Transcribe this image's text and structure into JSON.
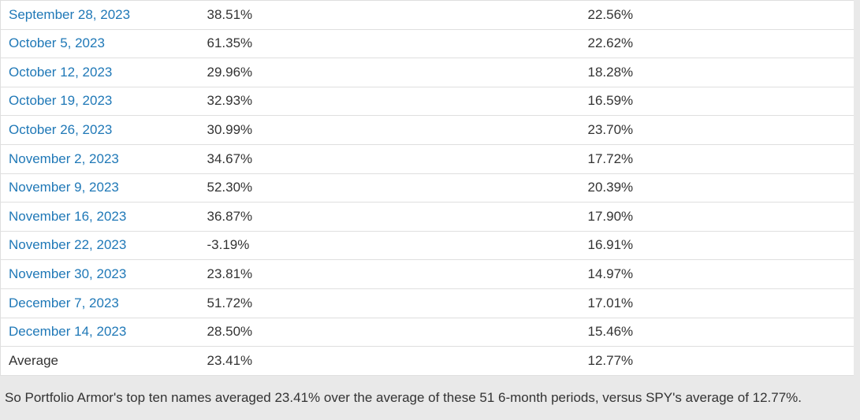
{
  "colors": {
    "link": "#1f78b7",
    "text": "#333333",
    "divider": "#dfdfdf",
    "page_background": "#e9e9e9",
    "table_background": "#ffffff"
  },
  "table": {
    "rows": [
      {
        "date": "September 28, 2023",
        "top_ten": "38.51%",
        "spy": "22.56%"
      },
      {
        "date": "October 5, 2023",
        "top_ten": "61.35%",
        "spy": "22.62%"
      },
      {
        "date": "October 12, 2023",
        "top_ten": "29.96%",
        "spy": "18.28%"
      },
      {
        "date": "October 19, 2023",
        "top_ten": "32.93%",
        "spy": "16.59%"
      },
      {
        "date": "October 26, 2023",
        "top_ten": "30.99%",
        "spy": "23.70%"
      },
      {
        "date": "November 2, 2023",
        "top_ten": "34.67%",
        "spy": "17.72%"
      },
      {
        "date": "November 9, 2023",
        "top_ten": "52.30%",
        "spy": "20.39%"
      },
      {
        "date": "November 16, 2023",
        "top_ten": "36.87%",
        "spy": "17.90%"
      },
      {
        "date": "November 22, 2023",
        "top_ten": "-3.19%",
        "spy": "16.91%"
      },
      {
        "date": "November 30, 2023",
        "top_ten": "23.81%",
        "spy": "14.97%"
      },
      {
        "date": "December 7, 2023",
        "top_ten": "51.72%",
        "spy": "17.01%"
      },
      {
        "date": "December 14, 2023",
        "top_ten": "28.50%",
        "spy": "15.46%"
      }
    ],
    "average": {
      "label": "Average",
      "top_ten": "23.41%",
      "spy": "12.77%"
    }
  },
  "footer": {
    "note": "So Portfolio Armor's top ten names averaged 23.41% over the average of these 51 6-month periods, versus SPY's average of 12.77%."
  }
}
